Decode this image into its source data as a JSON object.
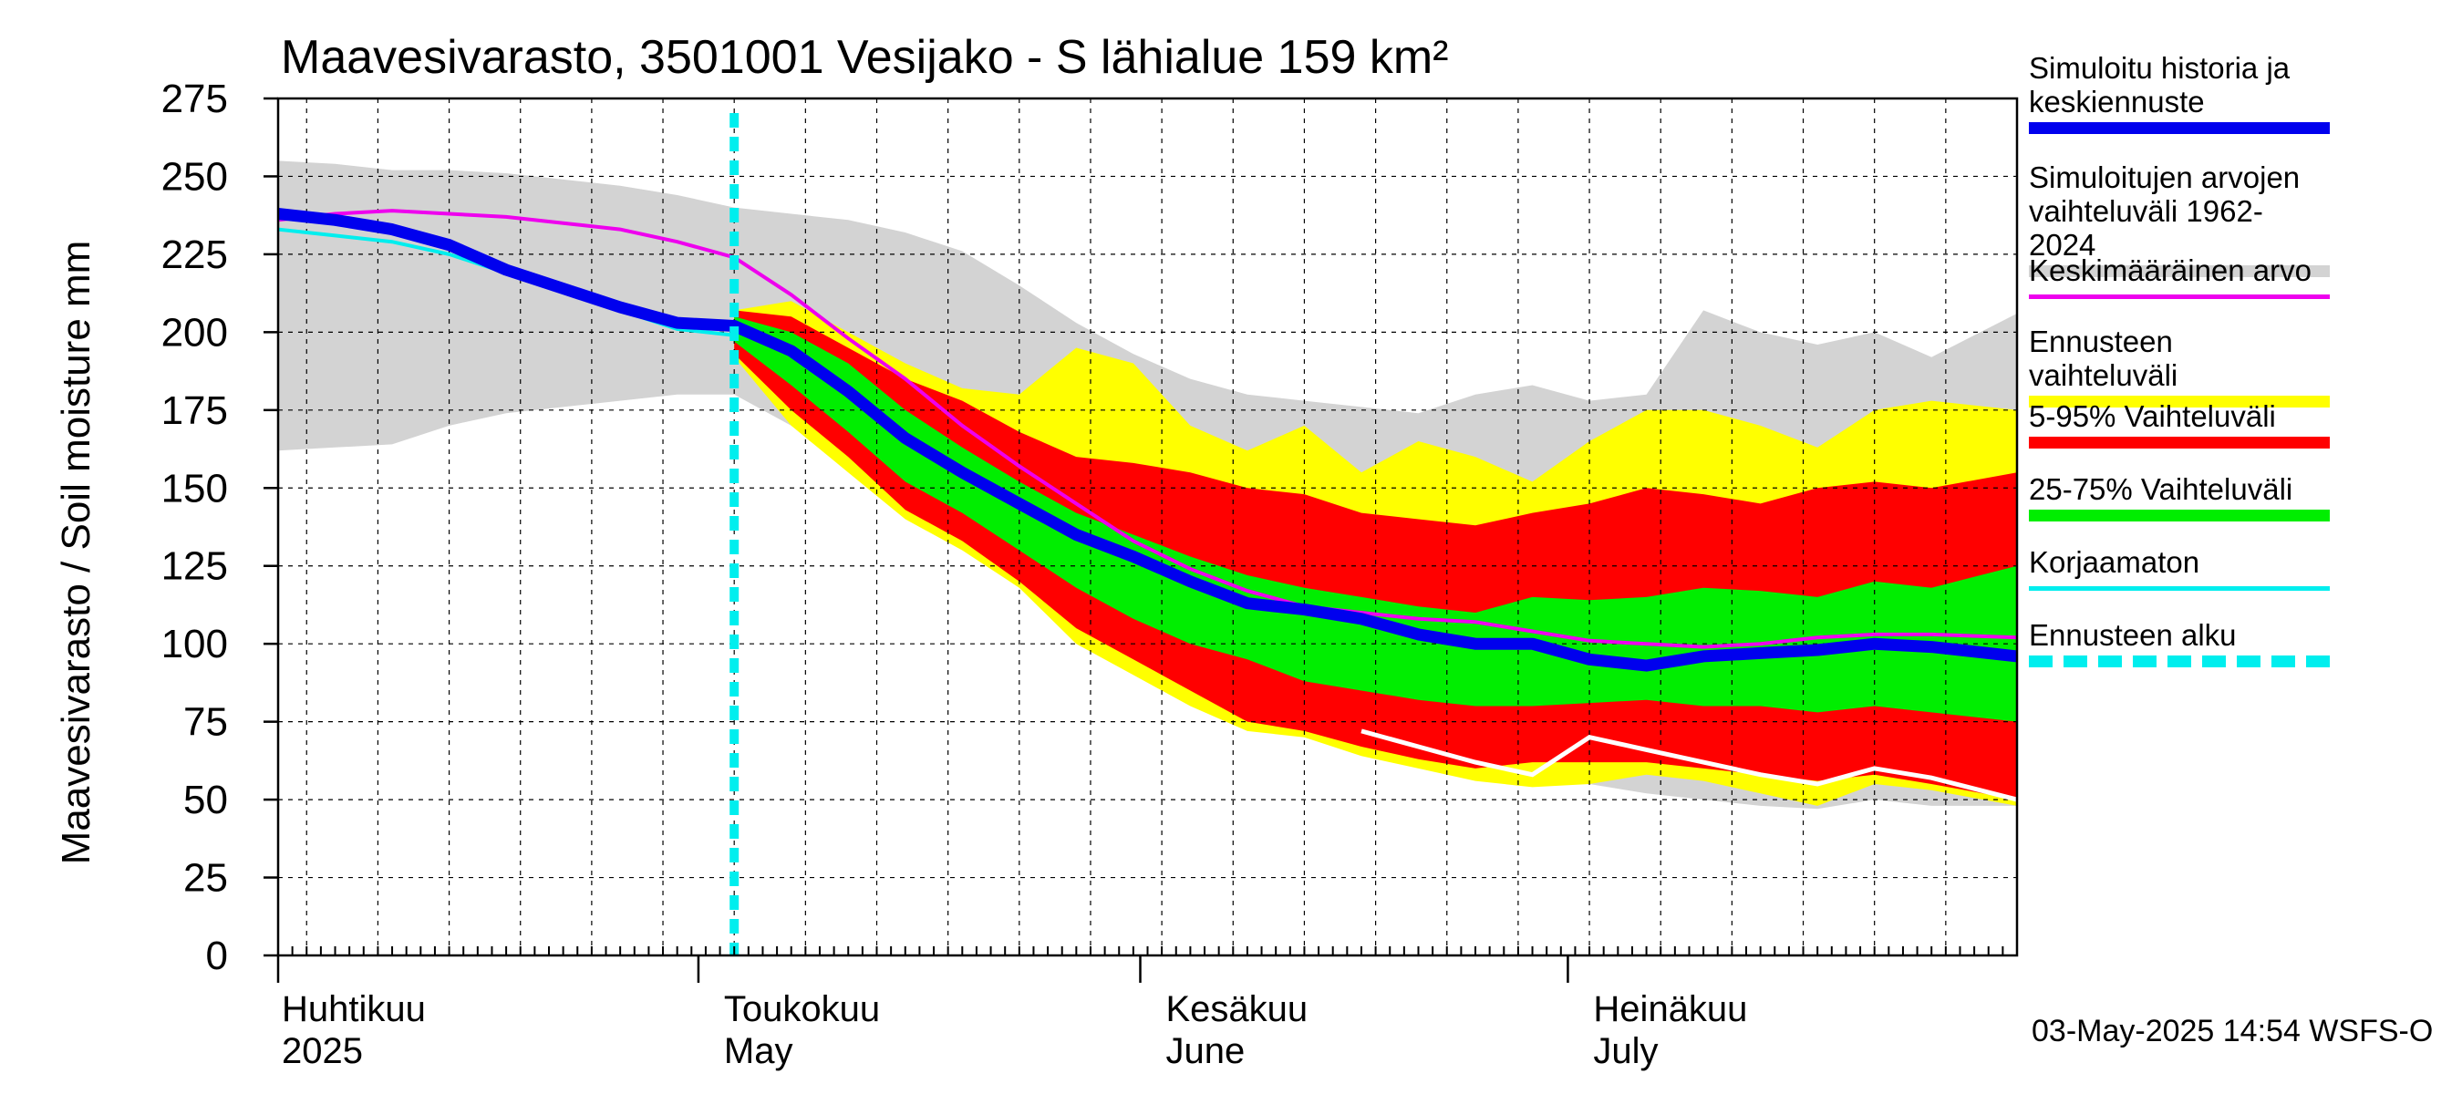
{
  "chart_data": {
    "type": "area",
    "title": "Maavesivarasto, 3501001 Vesijako - S lähialue 159 km²",
    "ylabel": "Maavesivarasto / Soil moisture   mm",
    "ylim": [
      0,
      275
    ],
    "yticks": [
      0,
      25,
      50,
      75,
      100,
      125,
      150,
      175,
      200,
      225,
      250,
      275
    ],
    "x_range_days": [
      0,
      122
    ],
    "forecast_start_day": 32,
    "month_labels": [
      {
        "fi": "Huhtikuu",
        "en": "2025",
        "day": 0
      },
      {
        "fi": "Toukokuu",
        "en": "May",
        "day": 30
      },
      {
        "fi": "Kesäkuu",
        "en": "June",
        "day": 61
      },
      {
        "fi": "Heinäkuu",
        "en": "July",
        "day": 91
      }
    ],
    "days": [
      0,
      4,
      8,
      12,
      16,
      20,
      24,
      28,
      32,
      36,
      40,
      44,
      48,
      52,
      56,
      60,
      64,
      68,
      72,
      76,
      80,
      84,
      88,
      92,
      96,
      100,
      104,
      108,
      112,
      116,
      122
    ],
    "series": [
      {
        "name": "hist_range_upper",
        "values": [
          255,
          254,
          252,
          252,
          251,
          249,
          247,
          244,
          240,
          238,
          236,
          232,
          226,
          215,
          203,
          193,
          185,
          180,
          178,
          176,
          174,
          180,
          183,
          178,
          180,
          207,
          200,
          196,
          200,
          192,
          206
        ]
      },
      {
        "name": "hist_range_lower",
        "values": [
          162,
          163,
          164,
          170,
          174,
          176,
          178,
          180,
          180,
          170,
          158,
          145,
          135,
          128,
          115,
          103,
          95,
          88,
          80,
          68,
          65,
          60,
          58,
          55,
          52,
          50,
          48,
          47,
          50,
          48,
          48
        ]
      },
      {
        "name": "forecast_range_upper",
        "values": [
          null,
          null,
          null,
          null,
          null,
          null,
          null,
          null,
          207,
          210,
          200,
          190,
          182,
          180,
          195,
          190,
          170,
          162,
          170,
          155,
          165,
          160,
          152,
          165,
          175,
          175,
          170,
          163,
          175,
          178,
          175
        ]
      },
      {
        "name": "forecast_range_lower",
        "values": [
          null,
          null,
          null,
          null,
          null,
          null,
          null,
          null,
          192,
          170,
          155,
          140,
          130,
          118,
          100,
          90,
          80,
          72,
          70,
          64,
          60,
          56,
          54,
          55,
          58,
          56,
          52,
          48,
          55,
          53,
          48
        ]
      },
      {
        "name": "p95",
        "values": [
          null,
          null,
          null,
          null,
          null,
          null,
          null,
          null,
          207,
          205,
          195,
          185,
          178,
          168,
          160,
          158,
          155,
          150,
          148,
          142,
          140,
          138,
          142,
          145,
          150,
          148,
          145,
          150,
          152,
          150,
          155
        ]
      },
      {
        "name": "p5",
        "values": [
          null,
          null,
          null,
          null,
          null,
          null,
          null,
          null,
          193,
          175,
          160,
          143,
          133,
          120,
          105,
          95,
          85,
          75,
          72,
          67,
          63,
          60,
          62,
          62,
          62,
          60,
          58,
          56,
          58,
          55,
          50
        ]
      },
      {
        "name": "p75",
        "values": [
          null,
          null,
          null,
          null,
          null,
          null,
          null,
          null,
          205,
          200,
          190,
          175,
          163,
          152,
          142,
          135,
          128,
          122,
          118,
          115,
          112,
          110,
          115,
          114,
          115,
          118,
          117,
          115,
          120,
          118,
          125
        ]
      },
      {
        "name": "p25",
        "values": [
          null,
          null,
          null,
          null,
          null,
          null,
          null,
          null,
          197,
          183,
          168,
          152,
          142,
          130,
          118,
          108,
          100,
          95,
          88,
          85,
          82,
          80,
          80,
          81,
          82,
          80,
          80,
          78,
          80,
          78,
          75
        ]
      },
      {
        "name": "Simuloitu historia ja keskiennuste",
        "values": [
          238,
          236,
          233,
          228,
          220,
          214,
          208,
          203,
          202,
          194,
          181,
          166,
          155,
          145,
          135,
          128,
          120,
          113,
          111,
          108,
          103,
          100,
          100,
          95,
          93,
          96,
          97,
          98,
          100,
          99,
          96
        ]
      },
      {
        "name": "Keskimääräinen arvo",
        "values": [
          236,
          238,
          239,
          238,
          237,
          235,
          233,
          229,
          224,
          212,
          198,
          185,
          170,
          157,
          145,
          133,
          124,
          117,
          112,
          110,
          108,
          107,
          104,
          101,
          100,
          99,
          100,
          102,
          103,
          103,
          102
        ]
      },
      {
        "name": "Korjaamaton",
        "values": [
          233,
          231,
          229,
          225,
          219,
          213,
          207,
          201,
          199,
          null,
          null,
          null,
          null,
          null,
          null,
          null,
          null,
          null,
          null,
          null,
          null,
          null,
          null,
          null,
          null,
          null,
          null,
          null,
          null,
          null,
          null
        ]
      },
      {
        "name": "Simuloitu minimi (valkoinen)",
        "values": [
          null,
          null,
          null,
          null,
          null,
          null,
          null,
          null,
          null,
          null,
          null,
          null,
          null,
          null,
          null,
          null,
          null,
          null,
          null,
          72,
          67,
          62,
          58,
          70,
          66,
          62,
          58,
          55,
          60,
          57,
          50
        ]
      }
    ],
    "legend": [
      {
        "label": "Simuloitu historia ja\nkeskiennuste",
        "color": "#0000ee",
        "style": "solid"
      },
      {
        "label": "Simuloitujen arvojen\nvaihteluväli 1962-2024",
        "color": "#d3d3d3",
        "style": "solid"
      },
      {
        "label": "Keskimääräinen arvo",
        "color": "#ee00ee",
        "style": "thin"
      },
      {
        "label": "Ennusteen vaihteluväli",
        "color": "#ffff00",
        "style": "solid"
      },
      {
        "label": "5-95% Vaihteluväli",
        "color": "#ff0000",
        "style": "solid"
      },
      {
        "label": "25-75% Vaihteluväli",
        "color": "#00ee00",
        "style": "solid"
      },
      {
        "label": "Korjaamaton",
        "color": "#00eeee",
        "style": "thin"
      },
      {
        "label": "Ennusteen alku",
        "color": "#00eeee",
        "style": "dashed"
      }
    ],
    "timestamp": "03-May-2025 14:54 WSFS-O"
  },
  "colors": {
    "grey": "#d3d3d3",
    "yellow": "#ffff00",
    "red": "#ff0000",
    "green": "#00ee00",
    "blue": "#0000ee",
    "magenta": "#ee00ee",
    "cyan": "#00eeee"
  }
}
